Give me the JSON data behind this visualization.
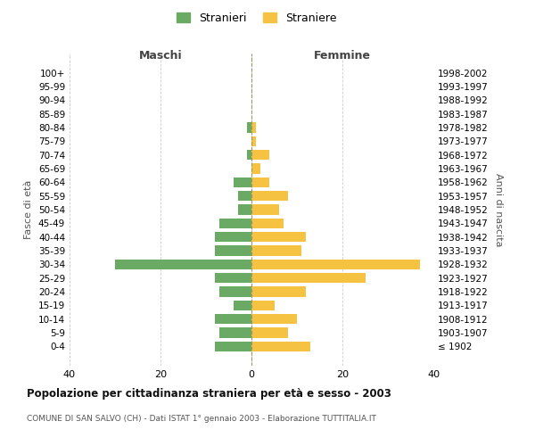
{
  "age_groups": [
    "100+",
    "95-99",
    "90-94",
    "85-89",
    "80-84",
    "75-79",
    "70-74",
    "65-69",
    "60-64",
    "55-59",
    "50-54",
    "45-49",
    "40-44",
    "35-39",
    "30-34",
    "25-29",
    "20-24",
    "15-19",
    "10-14",
    "5-9",
    "0-4"
  ],
  "birth_years": [
    "≤ 1902",
    "1903-1907",
    "1908-1912",
    "1913-1917",
    "1918-1922",
    "1923-1927",
    "1928-1932",
    "1933-1937",
    "1938-1942",
    "1943-1947",
    "1948-1952",
    "1953-1957",
    "1958-1962",
    "1963-1967",
    "1968-1972",
    "1973-1977",
    "1978-1982",
    "1983-1987",
    "1988-1992",
    "1993-1997",
    "1998-2002"
  ],
  "maschi": [
    0,
    0,
    0,
    0,
    1,
    0,
    1,
    0,
    4,
    3,
    3,
    7,
    8,
    8,
    30,
    8,
    7,
    4,
    8,
    7,
    8
  ],
  "femmine": [
    0,
    0,
    0,
    0,
    1,
    1,
    4,
    2,
    4,
    8,
    6,
    7,
    12,
    11,
    37,
    25,
    12,
    5,
    10,
    8,
    13
  ],
  "color_maschi": "#6aaa64",
  "color_femmine": "#f5c242",
  "title": "Popolazione per cittadinanza straniera per età e sesso - 2003",
  "subtitle": "COMUNE DI SAN SALVO (CH) - Dati ISTAT 1° gennaio 2003 - Elaborazione TUTTITALIA.IT",
  "xlabel_left": "Maschi",
  "xlabel_right": "Femmine",
  "ylabel_left": "Fasce di età",
  "ylabel_right": "Anni di nascita",
  "xlim": 40,
  "legend_stranieri": "Stranieri",
  "legend_straniere": "Straniere",
  "background_color": "#ffffff",
  "grid_color": "#cccccc"
}
